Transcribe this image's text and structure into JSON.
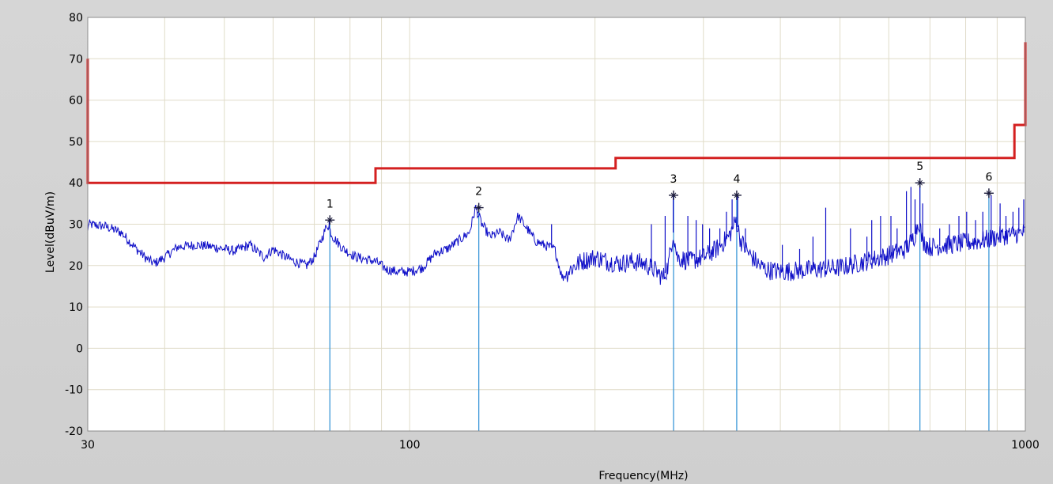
{
  "chart_data": {
    "type": "line",
    "xlabel": "Frequency(MHz)",
    "ylabel": "Level(dBuV/m)",
    "x_scale": "log",
    "xlim": [
      30,
      1000
    ],
    "ylim": [
      -20,
      80
    ],
    "x_ticks": [
      30,
      100,
      1000
    ],
    "y_ticks": [
      -20,
      -10,
      0,
      10,
      20,
      30,
      40,
      50,
      60,
      70,
      80
    ],
    "grid": true,
    "colors": {
      "limit": "#d42020",
      "trace": "#1010c8",
      "marker": "#3c98d8",
      "grid": "#e0dcc8",
      "plot_bg": "#ffffff",
      "frame": "#d3d3d3"
    },
    "limit_line": [
      [
        30,
        70
      ],
      [
        30,
        40
      ],
      [
        88,
        40
      ],
      [
        88,
        43.5
      ],
      [
        216,
        43.5
      ],
      [
        216,
        46
      ],
      [
        960,
        46
      ],
      [
        960,
        54
      ],
      [
        1000,
        54
      ],
      [
        1000,
        74
      ]
    ],
    "trace_anchors": [
      [
        30,
        30
      ],
      [
        32,
        29.5
      ],
      [
        34,
        28
      ],
      [
        36,
        24
      ],
      [
        37.5,
        21.5
      ],
      [
        38.5,
        20.5
      ],
      [
        40,
        22
      ],
      [
        42,
        24.5
      ],
      [
        45,
        25
      ],
      [
        48,
        24.5
      ],
      [
        50,
        24
      ],
      [
        52,
        23.5
      ],
      [
        55,
        25
      ],
      [
        58,
        22
      ],
      [
        60,
        24
      ],
      [
        63,
        22
      ],
      [
        65,
        21
      ],
      [
        68,
        20
      ],
      [
        70,
        22
      ],
      [
        72,
        26.5
      ],
      [
        73.5,
        30
      ],
      [
        75,
        27
      ],
      [
        78,
        24
      ],
      [
        82,
        22
      ],
      [
        88,
        21
      ],
      [
        92,
        19
      ],
      [
        96,
        18.5
      ],
      [
        100,
        18.5
      ],
      [
        105,
        19.5
      ],
      [
        110,
        23
      ],
      [
        115,
        24
      ],
      [
        120,
        26
      ],
      [
        125,
        28
      ],
      [
        128,
        34
      ],
      [
        131,
        30
      ],
      [
        135,
        27
      ],
      [
        140,
        28
      ],
      [
        145,
        26
      ],
      [
        150,
        32
      ],
      [
        155,
        29
      ],
      [
        160,
        26
      ],
      [
        165,
        25
      ],
      [
        172,
        24
      ],
      [
        177,
        17
      ],
      [
        182,
        19
      ],
      [
        190,
        21
      ],
      [
        200,
        22
      ],
      [
        210,
        21
      ],
      [
        220,
        20.5
      ],
      [
        230,
        21
      ],
      [
        240,
        20.5
      ],
      [
        250,
        19
      ],
      [
        258,
        17
      ],
      [
        263,
        20
      ],
      [
        268,
        28
      ],
      [
        272,
        22
      ],
      [
        285,
        21
      ],
      [
        300,
        22
      ],
      [
        315,
        24
      ],
      [
        330,
        27
      ],
      [
        339,
        31
      ],
      [
        345,
        26
      ],
      [
        355,
        23
      ],
      [
        370,
        20
      ],
      [
        380,
        19
      ],
      [
        400,
        18.5
      ],
      [
        450,
        19
      ],
      [
        500,
        19.5
      ],
      [
        550,
        21
      ],
      [
        600,
        22.5
      ],
      [
        640,
        24
      ],
      [
        660,
        27
      ],
      [
        672,
        31
      ],
      [
        680,
        26
      ],
      [
        700,
        24.5
      ],
      [
        750,
        25
      ],
      [
        800,
        25.5
      ],
      [
        850,
        26
      ],
      [
        880,
        26.5
      ],
      [
        900,
        27
      ],
      [
        950,
        27.5
      ],
      [
        1000,
        28
      ]
    ],
    "spikes": [
      [
        74,
        31
      ],
      [
        129,
        33
      ],
      [
        170,
        30
      ],
      [
        247,
        30
      ],
      [
        260,
        32
      ],
      [
        268,
        37
      ],
      [
        283,
        32
      ],
      [
        292,
        31
      ],
      [
        299,
        30
      ],
      [
        307,
        29
      ],
      [
        319,
        29
      ],
      [
        327,
        33
      ],
      [
        334,
        36
      ],
      [
        341,
        37
      ],
      [
        351,
        29
      ],
      [
        403,
        25
      ],
      [
        430,
        24
      ],
      [
        452,
        27
      ],
      [
        474,
        34
      ],
      [
        520,
        29
      ],
      [
        553,
        27
      ],
      [
        563,
        31
      ],
      [
        582,
        32
      ],
      [
        605,
        32
      ],
      [
        619,
        29
      ],
      [
        641,
        38
      ],
      [
        652,
        39
      ],
      [
        662,
        36
      ],
      [
        674,
        39.5
      ],
      [
        681,
        35
      ],
      [
        726,
        29
      ],
      [
        753,
        30
      ],
      [
        780,
        32
      ],
      [
        803,
        33
      ],
      [
        830,
        31
      ],
      [
        853,
        33
      ],
      [
        880,
        37
      ],
      [
        910,
        35
      ],
      [
        930,
        32
      ],
      [
        955,
        33
      ],
      [
        976,
        34
      ],
      [
        994,
        36
      ]
    ],
    "markers": [
      {
        "label": "1",
        "x": 74.2,
        "y": 31
      },
      {
        "label": "2",
        "x": 129.5,
        "y": 34
      },
      {
        "label": "3",
        "x": 268.3,
        "y": 37
      },
      {
        "label": "4",
        "x": 339.8,
        "y": 37
      },
      {
        "label": "5",
        "x": 674.2,
        "y": 40
      },
      {
        "label": "6",
        "x": 872.6,
        "y": 37.5
      }
    ]
  }
}
